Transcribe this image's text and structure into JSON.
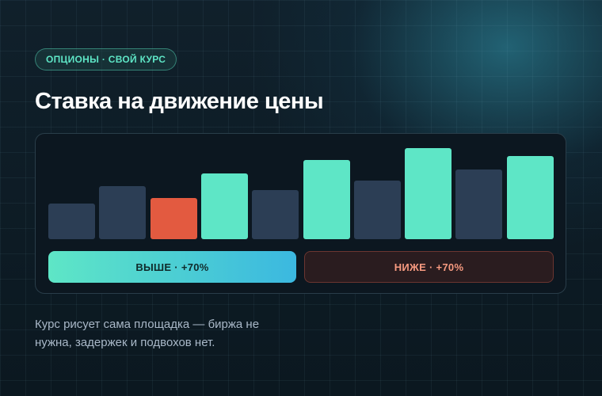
{
  "badge": "ОПЦИОНЫ · СВОЙ КУРС",
  "title": "Ставка на движение цены",
  "buttons": {
    "up": "ВЫШЕ · +70%",
    "down": "НИЖЕ · +70%"
  },
  "description": [
    "Курс рисует сама площадка — биржа не",
    "нужна, задержек и подвохов нет."
  ]
}
